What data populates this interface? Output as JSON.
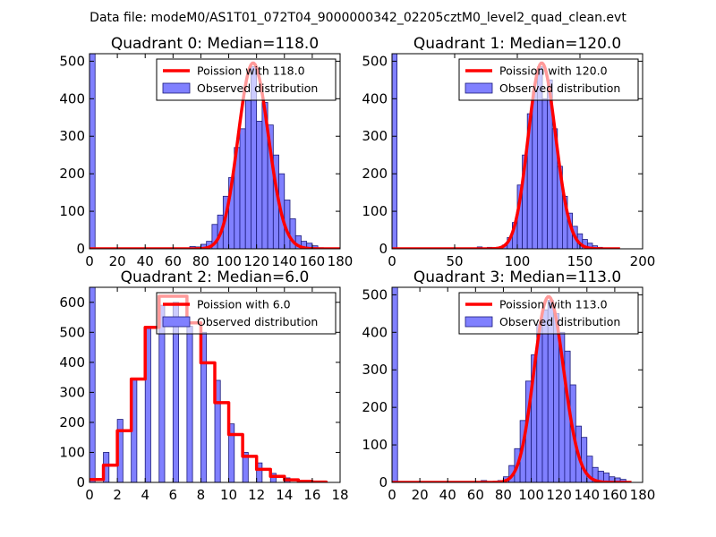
{
  "figure_title": "Data file: modeM0/AS1T01_072T04_9000000342_02205cztM0_level2_quad_clean.evt",
  "colors": {
    "bar_fill": "#8080ff",
    "bar_stroke": "#1a1a7a",
    "line": "#ff0000"
  },
  "chart_data": [
    {
      "type": "bar",
      "title": "Quadrant 0: Median=118.0",
      "xlabel": "",
      "ylabel": "",
      "xlim": [
        0,
        180
      ],
      "ylim": [
        0,
        520
      ],
      "xticks": [
        0,
        20,
        40,
        60,
        80,
        100,
        120,
        140,
        160,
        180
      ],
      "yticks": [
        0,
        100,
        200,
        300,
        400,
        500
      ],
      "legend": {
        "location": "top-right",
        "line_label": "Poission with 118.0",
        "bar_label": "Observed distribution"
      },
      "bar_width": 4,
      "bars": [
        {
          "x": 0,
          "h": 520
        },
        {
          "x": 72,
          "h": 6
        },
        {
          "x": 76,
          "h": 5
        },
        {
          "x": 80,
          "h": 12
        },
        {
          "x": 84,
          "h": 20
        },
        {
          "x": 88,
          "h": 65
        },
        {
          "x": 92,
          "h": 90
        },
        {
          "x": 96,
          "h": 140
        },
        {
          "x": 100,
          "h": 190
        },
        {
          "x": 104,
          "h": 270
        },
        {
          "x": 108,
          "h": 320
        },
        {
          "x": 112,
          "h": 395
        },
        {
          "x": 116,
          "h": 485
        },
        {
          "x": 120,
          "h": 340
        },
        {
          "x": 124,
          "h": 390
        },
        {
          "x": 128,
          "h": 330
        },
        {
          "x": 132,
          "h": 250
        },
        {
          "x": 136,
          "h": 200
        },
        {
          "x": 140,
          "h": 130
        },
        {
          "x": 144,
          "h": 80
        },
        {
          "x": 148,
          "h": 35
        },
        {
          "x": 152,
          "h": 20
        },
        {
          "x": 156,
          "h": 15
        },
        {
          "x": 160,
          "h": 8
        },
        {
          "x": 164,
          "h": 3
        }
      ],
      "curve": {
        "mu": 118,
        "peak": 495,
        "xmin": 0,
        "xmax": 180,
        "stepwise": false
      }
    },
    {
      "type": "bar",
      "title": "Quadrant 1: Median=120.0",
      "xlabel": "",
      "ylabel": "",
      "xlim": [
        0,
        200
      ],
      "ylim": [
        0,
        520
      ],
      "xticks": [
        0,
        50,
        100,
        150,
        200
      ],
      "yticks": [
        0,
        100,
        200,
        300,
        400,
        500
      ],
      "legend": {
        "location": "top-right",
        "line_label": "Poission with 120.0",
        "bar_label": "Observed distribution"
      },
      "bar_width": 4,
      "bars": [
        {
          "x": 0,
          "h": 520
        },
        {
          "x": 68,
          "h": 5
        },
        {
          "x": 76,
          "h": 4
        },
        {
          "x": 84,
          "h": 4
        },
        {
          "x": 88,
          "h": 10
        },
        {
          "x": 92,
          "h": 30
        },
        {
          "x": 96,
          "h": 70
        },
        {
          "x": 100,
          "h": 170
        },
        {
          "x": 104,
          "h": 250
        },
        {
          "x": 108,
          "h": 360
        },
        {
          "x": 112,
          "h": 420
        },
        {
          "x": 116,
          "h": 485
        },
        {
          "x": 120,
          "h": 400
        },
        {
          "x": 124,
          "h": 450
        },
        {
          "x": 128,
          "h": 320
        },
        {
          "x": 132,
          "h": 220
        },
        {
          "x": 136,
          "h": 140
        },
        {
          "x": 140,
          "h": 95
        },
        {
          "x": 144,
          "h": 60
        },
        {
          "x": 148,
          "h": 40
        },
        {
          "x": 152,
          "h": 25
        },
        {
          "x": 156,
          "h": 15
        },
        {
          "x": 160,
          "h": 8
        },
        {
          "x": 164,
          "h": 4
        }
      ],
      "curve": {
        "mu": 120,
        "peak": 495,
        "xmin": 0,
        "xmax": 182,
        "stepwise": false
      }
    },
    {
      "type": "bar",
      "title": "Quadrant 2: Median=6.0",
      "xlabel": "",
      "ylabel": "",
      "xlim": [
        0,
        18
      ],
      "ylim": [
        0,
        650
      ],
      "xticks": [
        0,
        2,
        4,
        6,
        8,
        10,
        12,
        14,
        16,
        18
      ],
      "yticks": [
        0,
        100,
        200,
        300,
        400,
        500,
        600
      ],
      "legend": {
        "location": "top-right",
        "line_label": "Poission with 6.0",
        "bar_label": "Observed distribution"
      },
      "bar_width": 0.4,
      "bars": [
        {
          "x": 0,
          "h": 650
        },
        {
          "x": 1,
          "h": 100
        },
        {
          "x": 2,
          "h": 210
        },
        {
          "x": 3,
          "h": 345
        },
        {
          "x": 4,
          "h": 520
        },
        {
          "x": 5,
          "h": 590
        },
        {
          "x": 6,
          "h": 600
        },
        {
          "x": 7,
          "h": 520
        },
        {
          "x": 8,
          "h": 500
        },
        {
          "x": 9,
          "h": 340
        },
        {
          "x": 10,
          "h": 195
        },
        {
          "x": 11,
          "h": 100
        },
        {
          "x": 12,
          "h": 65
        },
        {
          "x": 13,
          "h": 30
        },
        {
          "x": 14,
          "h": 15
        },
        {
          "x": 15,
          "h": 5
        },
        {
          "x": 16,
          "h": 3
        }
      ],
      "curve": {
        "mu": 6,
        "peak": 620,
        "xmin": 0,
        "xmax": 17,
        "stepwise": true
      }
    },
    {
      "type": "bar",
      "title": "Quadrant 3: Median=113.0",
      "xlabel": "",
      "ylabel": "",
      "xlim": [
        0,
        180
      ],
      "ylim": [
        0,
        520
      ],
      "xticks": [
        0,
        20,
        40,
        60,
        80,
        100,
        120,
        140,
        160,
        180
      ],
      "yticks": [
        0,
        100,
        200,
        300,
        400,
        500
      ],
      "legend": {
        "location": "top-right",
        "line_label": "Poission with 113.0",
        "bar_label": "Observed distribution"
      },
      "bar_width": 4,
      "bars": [
        {
          "x": 0,
          "h": 520
        },
        {
          "x": 64,
          "h": 5
        },
        {
          "x": 76,
          "h": 5
        },
        {
          "x": 80,
          "h": 15
        },
        {
          "x": 84,
          "h": 45
        },
        {
          "x": 88,
          "h": 90
        },
        {
          "x": 92,
          "h": 165
        },
        {
          "x": 96,
          "h": 270
        },
        {
          "x": 100,
          "h": 340
        },
        {
          "x": 104,
          "h": 420
        },
        {
          "x": 108,
          "h": 460
        },
        {
          "x": 112,
          "h": 485
        },
        {
          "x": 116,
          "h": 450
        },
        {
          "x": 120,
          "h": 400
        },
        {
          "x": 124,
          "h": 350
        },
        {
          "x": 128,
          "h": 260
        },
        {
          "x": 132,
          "h": 150
        },
        {
          "x": 136,
          "h": 120
        },
        {
          "x": 140,
          "h": 70
        },
        {
          "x": 144,
          "h": 40
        },
        {
          "x": 148,
          "h": 30
        },
        {
          "x": 152,
          "h": 25
        },
        {
          "x": 156,
          "h": 15
        },
        {
          "x": 160,
          "h": 12
        },
        {
          "x": 164,
          "h": 8
        }
      ],
      "curve": {
        "mu": 113,
        "peak": 495,
        "xmin": 0,
        "xmax": 172,
        "stepwise": false
      }
    }
  ]
}
